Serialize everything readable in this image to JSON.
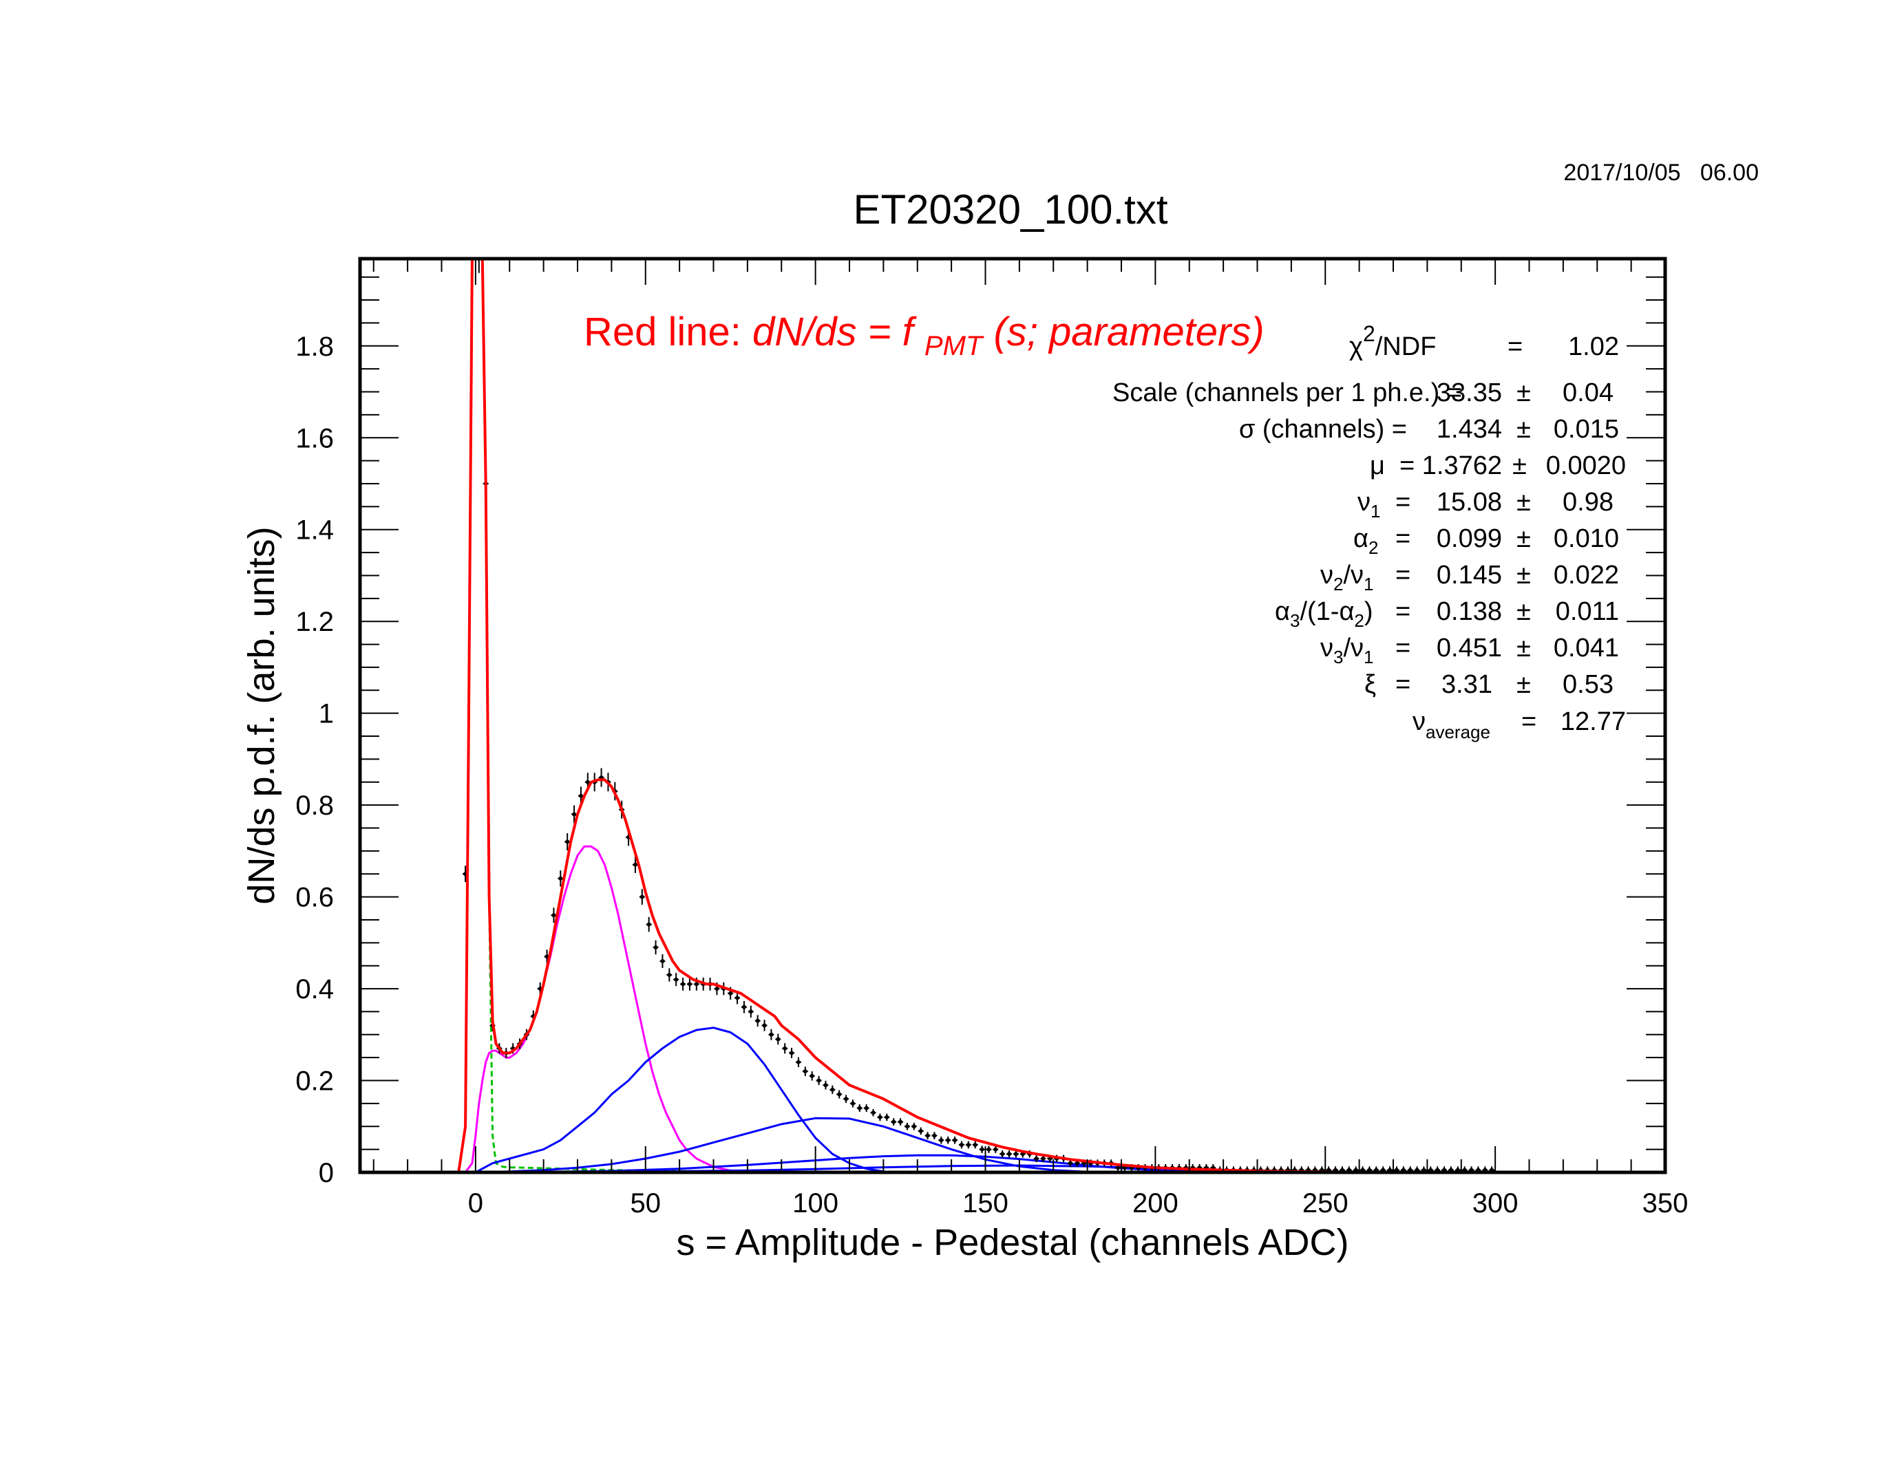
{
  "date": "2017/10/05   06.00",
  "colors": {
    "fit": "#ff0000",
    "pedestal": "#00c000",
    "single_pe": "#ff00ff",
    "multi_pe": "#0000ff",
    "data": "#000000"
  },
  "chart_data": {
    "type": "scatter",
    "title": "ET20320_100.txt",
    "xlabel": "s = Amplitude - Pedestal (channels ADC)",
    "ylabel": "dN/ds p.d.f. (arb. units)",
    "xlim": [
      -34,
      350
    ],
    "ylim": [
      0,
      1.99
    ],
    "x_ticks": [
      "0",
      "50",
      "100",
      "150",
      "200",
      "250",
      "300",
      "350"
    ],
    "y_ticks": [
      "0",
      "0.2",
      "0.4",
      "0.6",
      "0.8",
      "1",
      "1.2",
      "1.4",
      "1.6",
      "1.8"
    ],
    "grid": false,
    "legend_text": {
      "prefix": "Red line:",
      "formula": "dN/ds = f",
      "sub": "PMT",
      "suffix": "(s; parameters)"
    },
    "chi2": {
      "label": "/NDF",
      "sym": "χ",
      "sup": "2",
      "eq": "=",
      "value": "1.02"
    },
    "fit_parameters": [
      {
        "label": "Scale (channels per 1 ph.e.) =",
        "value": "33.35",
        "pm": "±",
        "error": "0.04"
      },
      {
        "label": "σ (channels) =",
        "value": "1.434",
        "pm": "±",
        "error": "0.015"
      },
      {
        "label": "μ  = 1.3762",
        "value": "",
        "pm": "±",
        "error": "0.0020"
      },
      {
        "label": "ν",
        "sub": "1",
        "eq": "=",
        "value": "15.08",
        "pm": "±",
        "error": "0.98"
      },
      {
        "label": "α",
        "sub": "2",
        "eq": "=",
        "value": "0.099",
        "pm": "±",
        "error": "0.010"
      },
      {
        "label": "ν",
        "sub": "2",
        "mid": "/ν",
        "sub2": "1",
        "eq": "=",
        "value": "0.145",
        "pm": "±",
        "error": "0.022"
      },
      {
        "label": "α",
        "sub": "3",
        "mid": "/(1-α",
        "sub2": "2",
        "tail": ")",
        "eq": "=",
        "value": "0.138",
        "pm": "±",
        "error": "0.011"
      },
      {
        "label": "ν",
        "sub": "3",
        "mid": "/ν",
        "sub2": "1",
        "eq": "=",
        "value": "0.451",
        "pm": "±",
        "error": "0.041"
      },
      {
        "label": "ξ",
        "eq": "=",
        "value": "3.31",
        "pm": "±",
        "error": "0.53"
      },
      {
        "label": "ν",
        "sub": "average",
        "eq": "=",
        "value": "12.77"
      }
    ],
    "data_points": {
      "x": [
        -3,
        -1,
        1,
        3,
        5,
        7,
        9,
        11,
        13,
        15,
        17,
        19,
        21,
        23,
        25,
        27,
        29,
        31,
        33,
        35,
        37,
        39,
        41,
        43,
        45,
        47,
        49,
        51,
        53,
        55,
        57,
        59,
        61,
        63,
        65,
        67,
        69,
        71,
        73,
        75,
        77,
        79,
        81,
        83,
        85,
        87,
        89,
        91,
        93,
        95,
        97,
        99,
        101,
        103,
        105,
        107,
        109,
        111,
        113,
        115,
        117,
        119,
        121,
        123,
        125,
        127,
        129,
        131,
        133,
        135,
        137,
        139,
        141,
        143,
        145,
        147,
        149,
        151,
        153,
        155,
        157,
        159,
        161,
        163,
        165,
        167,
        169,
        171,
        173,
        175,
        177,
        179,
        181,
        183,
        185,
        187,
        189,
        191,
        193,
        195,
        197,
        199,
        201,
        203,
        205,
        207,
        209,
        211,
        213,
        215,
        217,
        219,
        221,
        223,
        225,
        227,
        229,
        231,
        233,
        235,
        237,
        239,
        241,
        243,
        245,
        247,
        249,
        251,
        253,
        255,
        257,
        259,
        261,
        263,
        265,
        267,
        269,
        271,
        273,
        275,
        277,
        279,
        281,
        283,
        285,
        287,
        289,
        291,
        293,
        295,
        297,
        299
      ],
      "y": [
        0.65,
        1.99,
        1.99,
        1.5,
        0.32,
        0.27,
        0.26,
        0.27,
        0.28,
        0.3,
        0.34,
        0.4,
        0.47,
        0.56,
        0.64,
        0.72,
        0.78,
        0.82,
        0.85,
        0.85,
        0.86,
        0.85,
        0.83,
        0.79,
        0.73,
        0.67,
        0.6,
        0.54,
        0.49,
        0.46,
        0.43,
        0.42,
        0.41,
        0.41,
        0.41,
        0.41,
        0.41,
        0.4,
        0.4,
        0.39,
        0.38,
        0.36,
        0.35,
        0.33,
        0.32,
        0.3,
        0.29,
        0.27,
        0.26,
        0.24,
        0.22,
        0.21,
        0.2,
        0.19,
        0.18,
        0.17,
        0.16,
        0.15,
        0.14,
        0.14,
        0.13,
        0.12,
        0.12,
        0.11,
        0.11,
        0.1,
        0.1,
        0.09,
        0.08,
        0.08,
        0.07,
        0.07,
        0.07,
        0.06,
        0.06,
        0.06,
        0.05,
        0.05,
        0.05,
        0.04,
        0.04,
        0.04,
        0.04,
        0.04,
        0.03,
        0.03,
        0.03,
        0.03,
        0.03,
        0.02,
        0.02,
        0.02,
        0.02,
        0.02,
        0.02,
        0.02,
        0.01,
        0.01,
        0.01,
        0.01,
        0.01,
        0.01,
        0.01,
        0.01,
        0.01,
        0.01,
        0.01,
        0.01,
        0.01,
        0.01,
        0.01,
        0.005,
        0.005,
        0.005,
        0.005,
        0.005,
        0.005,
        0.005,
        0.005,
        0.005,
        0.005,
        0.005,
        0.005,
        0.005,
        0.005,
        0.005,
        0.005,
        0.005,
        0.005,
        0.005,
        0.005,
        0.005,
        0.005,
        0.005,
        0.005,
        0.005,
        0.005,
        0.005,
        0.005,
        0.005,
        0.005,
        0.005,
        0.005,
        0.005,
        0.005,
        0.005,
        0.005,
        0.005,
        0.005,
        0.005,
        0.005,
        0.005
      ]
    },
    "series": [
      {
        "name": "",
        "color": "#ff0000",
        "x": [
          -5,
          -3,
          -2,
          -1,
          0,
          1,
          2,
          3,
          4,
          5,
          6,
          7,
          8,
          9,
          10,
          12,
          14,
          16,
          18,
          20,
          22,
          24,
          26,
          28,
          30,
          32,
          34,
          36,
          38,
          40,
          42,
          44,
          46,
          48,
          50,
          52,
          54,
          56,
          58,
          60,
          62,
          64,
          66,
          68,
          70,
          72,
          74,
          76,
          78,
          80,
          82,
          84,
          86,
          88,
          90,
          95,
          100,
          105,
          110,
          115,
          120,
          125,
          130,
          135,
          140,
          145,
          150,
          155,
          160,
          165,
          170,
          175,
          180,
          185,
          190,
          195,
          200,
          210,
          220,
          230,
          240,
          250,
          260,
          270,
          280,
          290,
          300
        ],
        "y": [
          0,
          0.1,
          1.0,
          1.99,
          1.99,
          1.99,
          1.99,
          1.5,
          0.6,
          0.33,
          0.28,
          0.27,
          0.26,
          0.26,
          0.26,
          0.27,
          0.29,
          0.31,
          0.35,
          0.41,
          0.48,
          0.56,
          0.64,
          0.72,
          0.78,
          0.82,
          0.85,
          0.855,
          0.855,
          0.84,
          0.81,
          0.77,
          0.72,
          0.67,
          0.61,
          0.56,
          0.52,
          0.49,
          0.46,
          0.44,
          0.43,
          0.42,
          0.415,
          0.41,
          0.41,
          0.405,
          0.4,
          0.395,
          0.39,
          0.38,
          0.37,
          0.36,
          0.35,
          0.34,
          0.32,
          0.29,
          0.25,
          0.22,
          0.19,
          0.175,
          0.16,
          0.14,
          0.12,
          0.105,
          0.09,
          0.075,
          0.065,
          0.055,
          0.047,
          0.04,
          0.034,
          0.028,
          0.024,
          0.02,
          0.016,
          0.013,
          0.01,
          0.007,
          0.005,
          0.003,
          0.002,
          0.001,
          0.0005,
          0,
          0,
          0,
          0
        ]
      },
      {
        "name": "",
        "color": "#00c000",
        "x": [
          -3,
          -2,
          -1,
          0,
          1,
          2,
          3,
          4,
          5,
          6,
          8,
          10,
          15,
          20,
          30,
          40,
          50,
          60,
          80,
          100,
          120,
          140,
          160,
          200,
          250,
          300
        ],
        "y": [
          0.1,
          1.0,
          1.99,
          1.99,
          1.99,
          1.99,
          1.5,
          0.6,
          0.08,
          0.02,
          0.012,
          0.011,
          0.01,
          0.009,
          0.007,
          0.005,
          0.004,
          0.003,
          0.002,
          0.001,
          0.0005,
          0.0003,
          0.0002,
          0,
          0,
          0
        ]
      },
      {
        "name": "",
        "color": "#ff00ff",
        "x": [
          -3,
          -1,
          0,
          1,
          2,
          3,
          4,
          5,
          6,
          7,
          8,
          9,
          10,
          12,
          14,
          16,
          18,
          20,
          22,
          24,
          26,
          28,
          30,
          32,
          34,
          36,
          38,
          40,
          42,
          44,
          46,
          48,
          50,
          52,
          54,
          56,
          58,
          60,
          62,
          65,
          70,
          75,
          80,
          85,
          90
        ],
        "y": [
          0,
          0.02,
          0.08,
          0.15,
          0.2,
          0.24,
          0.26,
          0.265,
          0.265,
          0.26,
          0.255,
          0.25,
          0.25,
          0.26,
          0.28,
          0.31,
          0.35,
          0.41,
          0.47,
          0.54,
          0.6,
          0.65,
          0.69,
          0.71,
          0.71,
          0.7,
          0.67,
          0.62,
          0.56,
          0.49,
          0.42,
          0.35,
          0.28,
          0.22,
          0.17,
          0.13,
          0.1,
          0.07,
          0.05,
          0.03,
          0.012,
          0.004,
          0.001,
          0,
          0
        ]
      },
      {
        "name": "",
        "color": "#0000ff",
        "x": [
          0,
          5,
          10,
          15,
          20,
          25,
          30,
          35,
          40,
          45,
          50,
          55,
          60,
          65,
          70,
          75,
          80,
          85,
          90,
          95,
          100,
          105,
          110,
          115,
          120
        ],
        "y": [
          0,
          0.02,
          0.03,
          0.04,
          0.05,
          0.07,
          0.1,
          0.13,
          0.17,
          0.2,
          0.24,
          0.27,
          0.295,
          0.31,
          0.315,
          0.305,
          0.28,
          0.235,
          0.18,
          0.125,
          0.075,
          0.04,
          0.02,
          0.008,
          0.002
        ]
      },
      {
        "name": "",
        "color": "#0000ff",
        "x": [
          0,
          10,
          20,
          30,
          40,
          50,
          60,
          70,
          80,
          90,
          100,
          110,
          120,
          130,
          140,
          150,
          160,
          170,
          180
        ],
        "y": [
          0,
          0.002,
          0.005,
          0.01,
          0.018,
          0.03,
          0.045,
          0.065,
          0.085,
          0.105,
          0.118,
          0.117,
          0.1,
          0.075,
          0.05,
          0.028,
          0.013,
          0.005,
          0.001
        ]
      },
      {
        "name": "",
        "color": "#0000ff",
        "x": [
          0,
          20,
          40,
          60,
          80,
          100,
          110,
          120,
          130,
          140,
          150,
          160,
          170,
          180,
          190,
          200,
          220
        ],
        "y": [
          0,
          0.001,
          0.003,
          0.008,
          0.016,
          0.026,
          0.031,
          0.035,
          0.037,
          0.037,
          0.034,
          0.029,
          0.022,
          0.015,
          0.009,
          0.005,
          0.001
        ]
      },
      {
        "name": "",
        "color": "#0000ff",
        "x": [
          0,
          40,
          80,
          100,
          120,
          140,
          160,
          180,
          200,
          220,
          240
        ],
        "y": [
          0,
          0.001,
          0.004,
          0.007,
          0.011,
          0.014,
          0.015,
          0.013,
          0.009,
          0.004,
          0.001
        ]
      }
    ]
  }
}
